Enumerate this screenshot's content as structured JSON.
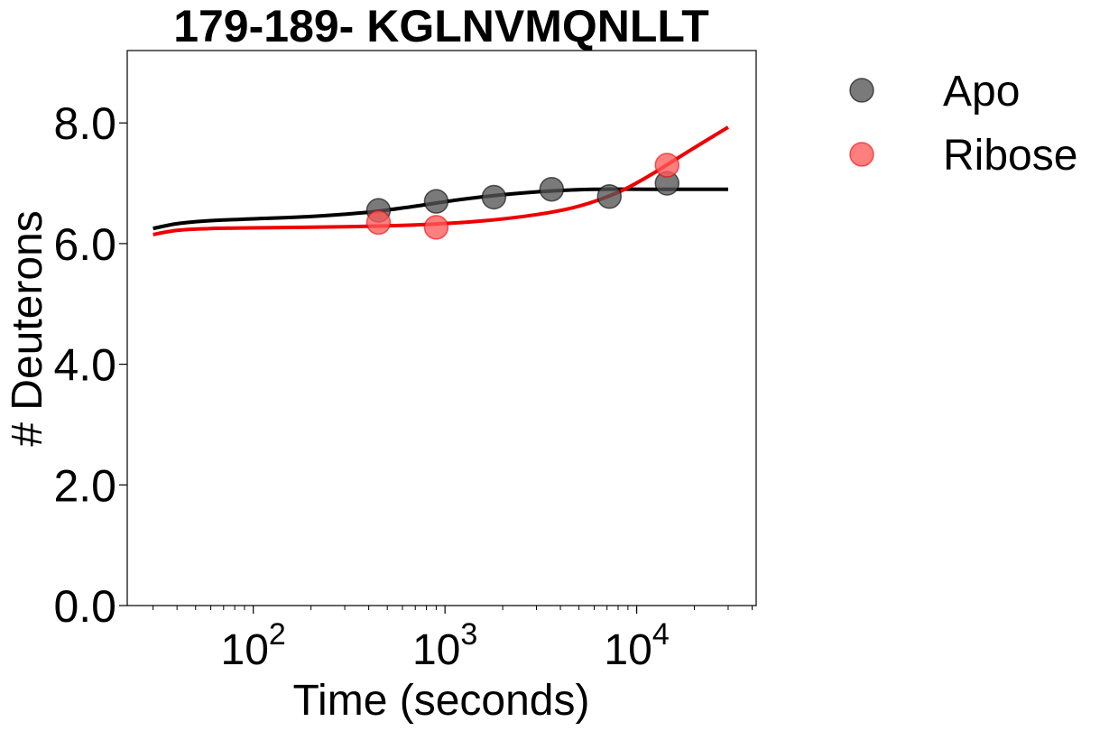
{
  "chart_data": {
    "type": "scatter",
    "title": "179-189- KGLNVMQNLLT",
    "xlabel": "Time (seconds)",
    "ylabel": "# Deuterons",
    "x_scale": "log",
    "xlim": [
      22,
      42000
    ],
    "ylim": [
      0,
      9.2
    ],
    "y_ticks": [
      0,
      2,
      4,
      6,
      8
    ],
    "y_tick_labels": [
      "0.0",
      "2.0",
      "4.0",
      "6.0",
      "8.0"
    ],
    "x_ticks": [
      {
        "value": 100,
        "base": "10",
        "exp": "2"
      },
      {
        "value": 1000,
        "base": "10",
        "exp": "3"
      },
      {
        "value": 10000,
        "base": "10",
        "exp": "4"
      }
    ],
    "legend_position": "outside-top-right",
    "grid": false,
    "series": [
      {
        "name": "Apo",
        "color": "#000000",
        "marker_color": "#555555",
        "points": [
          [
            450,
            6.55
          ],
          [
            900,
            6.7
          ],
          [
            1800,
            6.77
          ],
          [
            3600,
            6.9
          ],
          [
            7200,
            6.78
          ],
          [
            14400,
            7.0
          ]
        ],
        "fit": [
          [
            30,
            6.25
          ],
          [
            40,
            6.33
          ],
          [
            60,
            6.38
          ],
          [
            100,
            6.41
          ],
          [
            200,
            6.45
          ],
          [
            400,
            6.52
          ],
          [
            700,
            6.62
          ],
          [
            1200,
            6.73
          ],
          [
            2000,
            6.81
          ],
          [
            3500,
            6.87
          ],
          [
            6000,
            6.9
          ],
          [
            12000,
            6.9
          ],
          [
            30000,
            6.9
          ]
        ]
      },
      {
        "name": "Ribose",
        "color": "#ee0000",
        "marker_color": "#ff5a5a",
        "points": [
          [
            450,
            6.35
          ],
          [
            900,
            6.27
          ],
          [
            14400,
            7.3
          ]
        ],
        "fit": [
          [
            30,
            6.15
          ],
          [
            40,
            6.22
          ],
          [
            60,
            6.25
          ],
          [
            100,
            6.26
          ],
          [
            300,
            6.28
          ],
          [
            700,
            6.31
          ],
          [
            1500,
            6.37
          ],
          [
            3000,
            6.48
          ],
          [
            5000,
            6.62
          ],
          [
            8000,
            6.85
          ],
          [
            12000,
            7.15
          ],
          [
            18000,
            7.5
          ],
          [
            30000,
            7.93
          ]
        ]
      }
    ]
  }
}
